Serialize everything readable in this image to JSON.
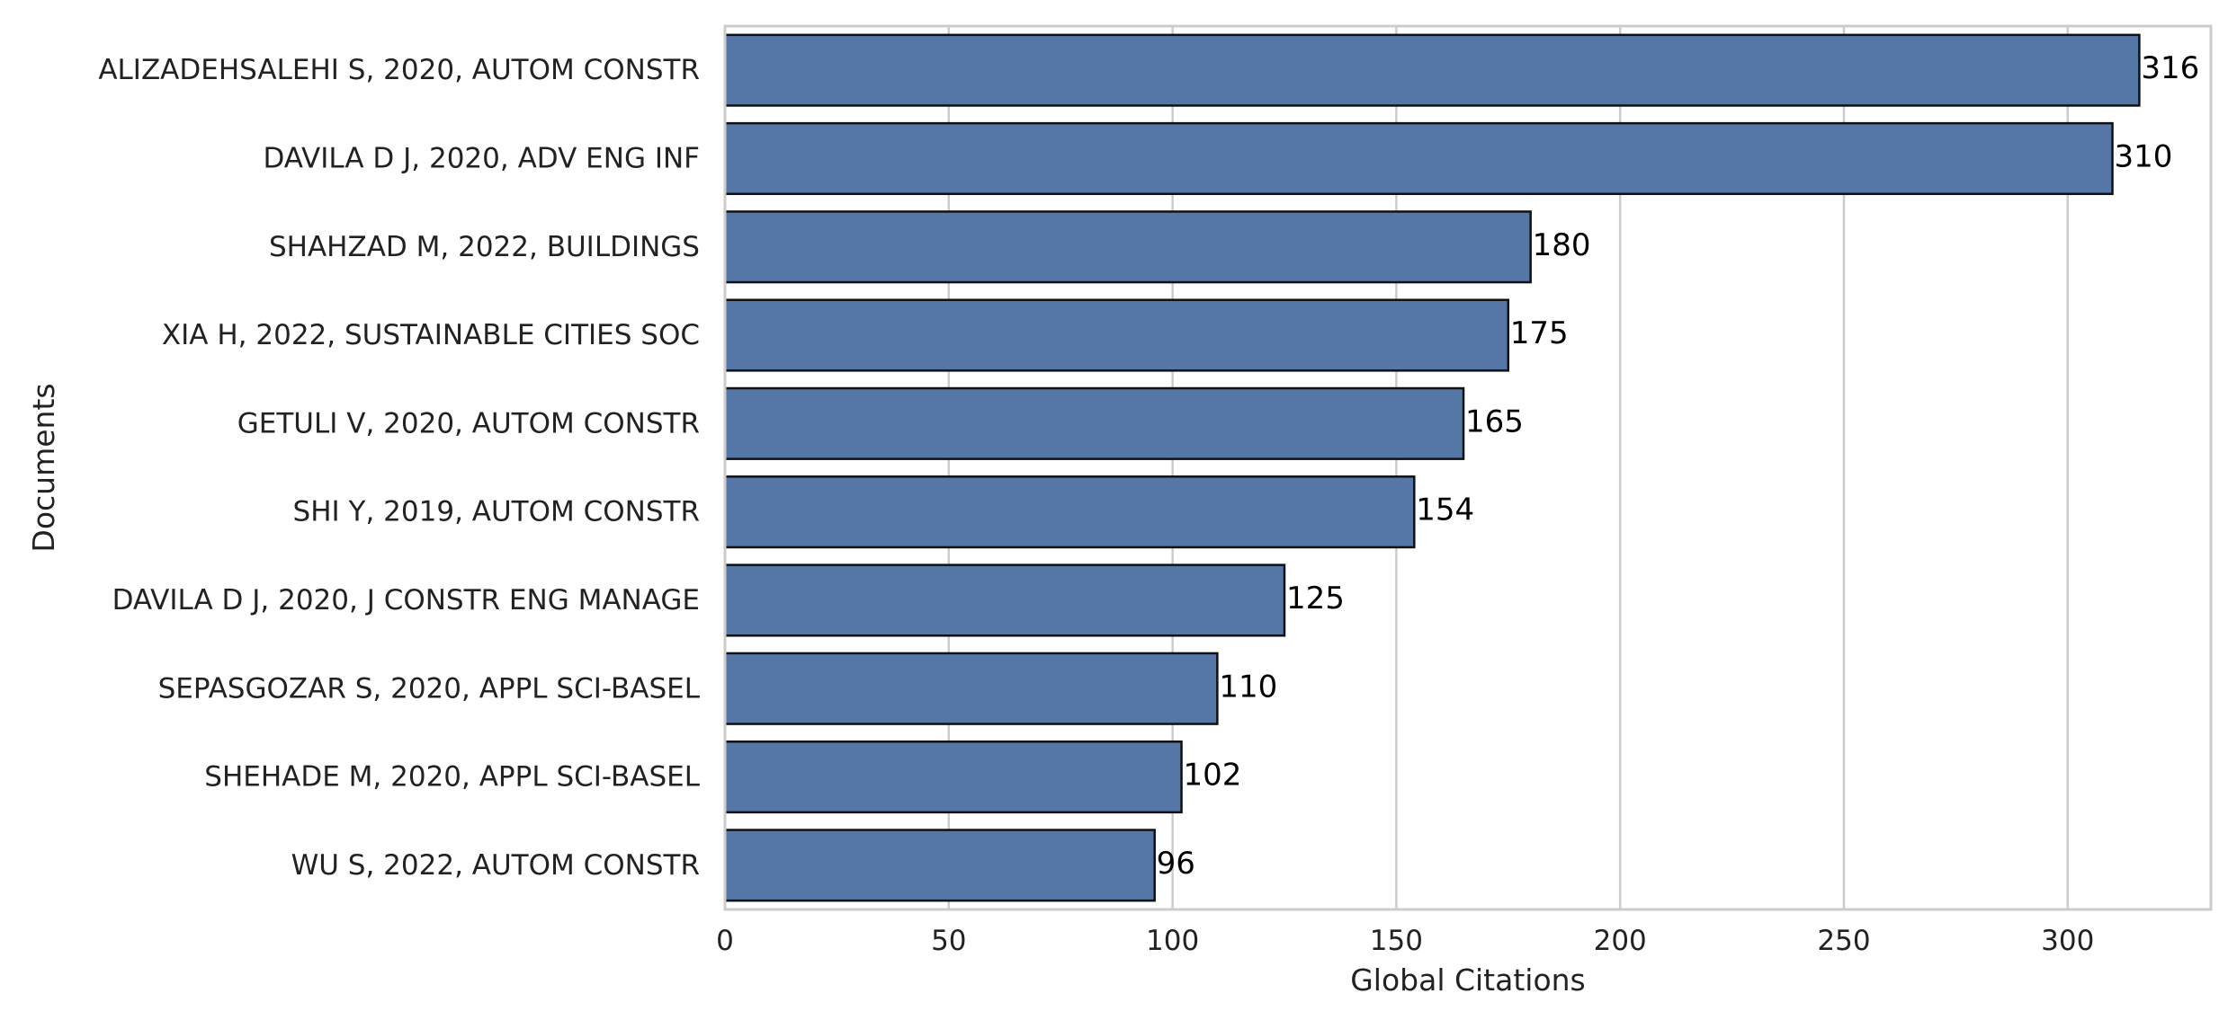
{
  "chart_data": {
    "type": "bar",
    "orientation": "horizontal",
    "categories": [
      "ALIZADEHSALEHI S, 2020, AUTOM CONSTR",
      "DAVILA D J, 2020, ADV ENG INF",
      "SHAHZAD M, 2022, BUILDINGS",
      "XIA H, 2022, SUSTAINABLE CITIES SOC",
      "GETULI V, 2020, AUTOM CONSTR",
      "SHI Y, 2019, AUTOM CONSTR",
      "DAVILA D J, 2020, J CONSTR ENG MANAGE",
      "SEPASGOZAR S, 2020, APPL SCI-BASEL",
      "SHEHADE M, 2020, APPL SCI-BASEL",
      "WU S, 2022, AUTOM CONSTR"
    ],
    "values": [
      316,
      310,
      180,
      175,
      165,
      154,
      125,
      110,
      102,
      96
    ],
    "data_labels": [
      "316",
      "310",
      "180",
      "175",
      "165",
      "154",
      "125",
      "110",
      "102",
      "96"
    ],
    "title": "",
    "xlabel": "Global Citations",
    "ylabel": "Documents",
    "xlim": [
      0,
      332
    ],
    "xticks": [
      0,
      50,
      100,
      150,
      200,
      250,
      300
    ],
    "xtick_labels": [
      "0",
      "50",
      "100",
      "150",
      "200",
      "250",
      "300"
    ],
    "grid": "vertical",
    "legend": "none",
    "bar_color": "#5577a8",
    "bar_edge_color": "#111111"
  }
}
